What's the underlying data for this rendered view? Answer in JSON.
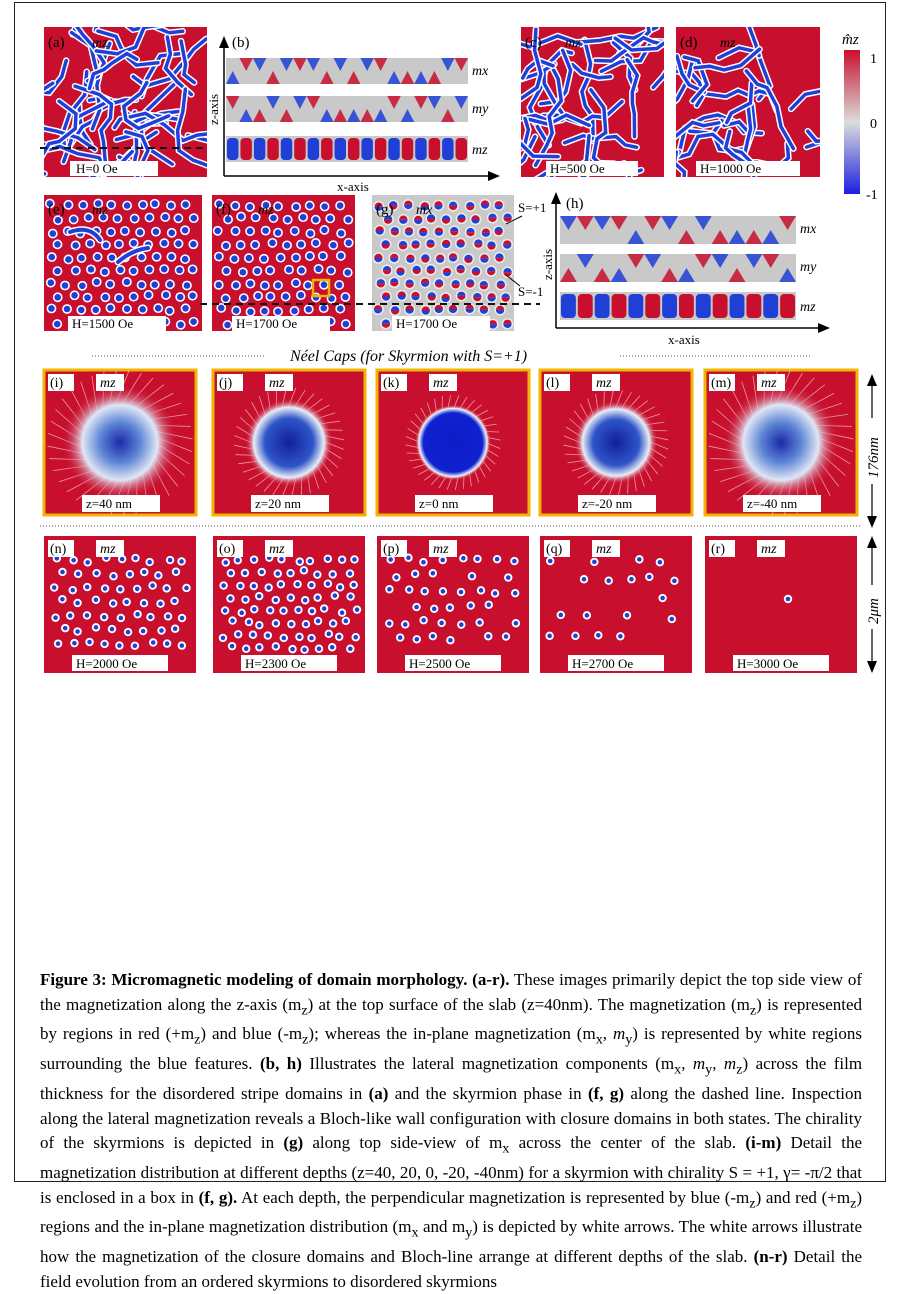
{
  "panels": {
    "a": {
      "tag": "(a)",
      "comp": "mz",
      "field": "H=0 Oe"
    },
    "b": {
      "tag": "(b)",
      "rows": [
        "mx",
        "my",
        "mz"
      ],
      "xaxis": "x-axis",
      "zaxis": "z-axis"
    },
    "c": {
      "tag": "(c)",
      "comp": "mz",
      "field": "H=500 Oe"
    },
    "d": {
      "tag": "(d)",
      "comp": "mz",
      "field": "H=1000 Oe"
    },
    "e": {
      "tag": "(e)",
      "comp": "mz",
      "field": "H=1500 Oe"
    },
    "f": {
      "tag": "(f)",
      "comp": "mz",
      "field": "H=1700 Oe"
    },
    "g": {
      "tag": "(g)",
      "comp": "mx",
      "field": "H=1700 Oe",
      "s_plus": "S=+1",
      "s_minus": "S=-1"
    },
    "h": {
      "tag": "(h)",
      "rows": [
        "mx",
        "my",
        "mz"
      ],
      "xaxis": "x-axis",
      "zaxis": "z-axis"
    },
    "i": {
      "tag": "(i)",
      "comp": "mz",
      "depth": "z=40 nm"
    },
    "j": {
      "tag": "(j)",
      "comp": "mz",
      "depth": "z=20 nm"
    },
    "k": {
      "tag": "(k)",
      "comp": "mz",
      "depth": "z=0 nm"
    },
    "l": {
      "tag": "(l)",
      "comp": "mz",
      "depth": "z=-20 nm"
    },
    "m": {
      "tag": "(m)",
      "comp": "mz",
      "depth": "z=-40 nm"
    },
    "n": {
      "tag": "(n)",
      "comp": "mz",
      "field": "H=2000 Oe"
    },
    "o": {
      "tag": "(o)",
      "comp": "mz",
      "field": "H=2300 Oe"
    },
    "p": {
      "tag": "(p)",
      "comp": "mz",
      "field": "H=2500 Oe"
    },
    "q": {
      "tag": "(q)",
      "comp": "mz",
      "field": "H=2700 Oe"
    },
    "r": {
      "tag": "(r)",
      "comp": "mz",
      "field": "H=3000 Oe"
    }
  },
  "colorbar": {
    "title": "m̂z",
    "max": "1",
    "mid": "0",
    "min": "-1"
  },
  "neel_title": "Néel Caps (for Skyrmion with S=+1)",
  "scale_176": "176nm",
  "scale_2um": "2μm",
  "caption": {
    "title": "Figure 3: Micromagnetic modeling of domain morphology.",
    "r1_ref": "(a-r).",
    "r1_text": " These images primarily depict the top side view of the magnetization along the z-axis (m",
    "r1_end": ") at the top surface of the slab (z=40nm). The magnetization (m",
    "r2_text": ") is represented by regions in red (+m",
    "r3_text": ") and blue (-m",
    "r4_text": "); whereas the in-plane magnetization (m",
    "r5_text": ") is represented by white regions surrounding the blue features.",
    "bh_ref": "(b, h)",
    "bh_text": " Illustrates the lateral magnetization components (m",
    "bh_text2": ") across the film thickness for the disordered stripe domains in",
    "a_ref": "(a)",
    "bh_text3": " and the skyrmion phase in",
    "fg_ref": "(f, g)",
    "bh_text4": " along the dashed line. Inspection along the lateral magnetization reveals a Bloch-like wall configuration with closure domains in both states. The chirality of the skyrmions is depicted in",
    "g_ref": "(g)",
    "g_text": " along top side-view of m",
    "g_text2": " across the center of the slab.",
    "im_ref": "(i-m)",
    "im_text": " Detail the magnetization distribution at different depths (z=40, 20, 0, -20, -40nm) for a skyrmion with chirality S = +1, γ= -π/2 that is enclosed in a box in",
    "fg2_ref": "(f, g).",
    "im_text2": " At each depth, the perpendicular magnetization is represented by blue (-m",
    "im_text3": ") and red (+m",
    "im_text4": ") regions and the in-plane magnetization distribution (m",
    "im_text5": " and m",
    "im_text6": ") is depicted by white arrows. The white arrows illustrate how the magnetization of the closure domains and Bloch-line arrange at different depths of the slab.",
    "nr_ref": "(n-r)",
    "nr_text": " Detail the field evolution from an ordered skyrmions to disordered skyrmions",
    "sub_z": "z",
    "sub_x": "x",
    "sub_y": "y",
    "comma": ", "
  },
  "colors": {
    "red": "#c8102e",
    "blue": "#1f3fd6",
    "gold": "#f2b400",
    "gray": "#c9c9c9"
  }
}
